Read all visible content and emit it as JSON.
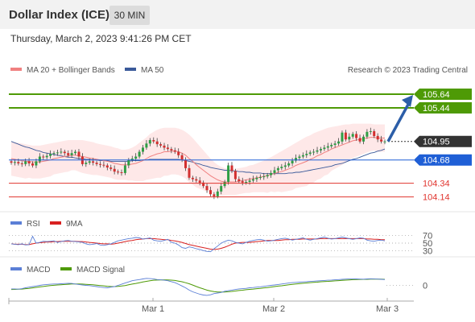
{
  "header": {
    "title": "Dollar Index (ICE)",
    "timeframe": "30 MIN",
    "timestamp": "Thursday, March 2, 2023 9:41:26 PM CET"
  },
  "legend": {
    "ma20": "MA 20 + Bollinger Bands",
    "ma50": "MA 50",
    "copyright": "Research © 2023 Trading Central",
    "rsi": "RSI",
    "rsi_ma": "9MA",
    "macd": "MACD",
    "macd_signal": "MACD Signal"
  },
  "colors": {
    "green_level": "#4e9a06",
    "blue_level": "#1f5fd6",
    "red_level": "#e0342e",
    "last_price": "#333333",
    "arrow": "#2c5ea8",
    "ma20": "#f08080",
    "ma50": "#3a5a9a",
    "band": "#fde0e0",
    "rsi": "#5b7fd6",
    "rsi_ma": "#d82020",
    "macd": "#5b7fd6",
    "macd_signal": "#4e9a06"
  },
  "chart_data": [
    {
      "type": "candlestick",
      "name": "price",
      "ylim": [
        103.96,
        105.84
      ],
      "x_ticks": [
        "Mar 1",
        "Mar 2",
        "Mar 3"
      ],
      "levels": [
        {
          "label": "105.64",
          "value": 105.64,
          "kind": "resistance"
        },
        {
          "label": "105.44",
          "value": 105.44,
          "kind": "resistance"
        },
        {
          "label": "104.95",
          "value": 104.95,
          "kind": "last"
        },
        {
          "label": "104.68",
          "value": 104.68,
          "kind": "pivot"
        },
        {
          "label": "104.34",
          "value": 104.34,
          "kind": "support"
        },
        {
          "label": "104.14",
          "value": 104.14,
          "kind": "support"
        }
      ],
      "close": [
        104.64,
        104.65,
        104.63,
        104.62,
        104.66,
        104.63,
        104.6,
        104.66,
        104.73,
        104.72,
        104.74,
        104.77,
        104.78,
        104.79,
        104.8,
        104.78,
        104.75,
        104.78,
        104.8,
        104.73,
        104.62,
        104.64,
        104.66,
        104.64,
        104.62,
        104.61,
        104.6,
        104.57,
        104.55,
        104.51,
        104.5,
        104.49,
        104.6,
        104.68,
        104.7,
        104.73,
        104.8,
        104.86,
        104.92,
        104.97,
        104.95,
        104.91,
        104.89,
        104.86,
        104.84,
        104.82,
        104.8,
        104.75,
        104.68,
        104.56,
        104.42,
        104.4,
        104.38,
        104.35,
        104.3,
        104.24,
        104.18,
        104.15,
        104.22,
        104.3,
        104.36,
        104.6,
        104.52,
        104.4,
        104.37,
        104.35,
        104.36,
        104.38,
        104.4,
        104.42,
        104.43,
        104.44,
        104.46,
        104.49,
        104.53,
        104.56,
        104.58,
        104.6,
        104.63,
        104.67,
        104.71,
        104.73,
        104.75,
        104.77,
        104.79,
        104.8,
        104.82,
        104.84,
        104.86,
        104.88,
        104.9,
        104.92,
        104.95,
        105.08,
        104.98,
        105.02,
        105.06,
        105.0,
        104.95,
        105.02,
        105.09,
        105.1,
        105.03,
        104.98,
        104.95,
        104.95
      ],
      "ma20": [
        104.7,
        104.69,
        104.68,
        104.67,
        104.66,
        104.66,
        104.65,
        104.65,
        104.65,
        104.66,
        104.67,
        104.68,
        104.7,
        104.71,
        104.72,
        104.73,
        104.74,
        104.75,
        104.75,
        104.74,
        104.73,
        104.72,
        104.71,
        104.7,
        104.69,
        104.68,
        104.67,
        104.66,
        104.65,
        104.63,
        104.62,
        104.61,
        104.61,
        104.61,
        104.62,
        104.63,
        104.65,
        104.67,
        104.7,
        104.73,
        104.75,
        104.77,
        104.78,
        104.8,
        104.8,
        104.81,
        104.81,
        104.8,
        104.78,
        104.75,
        104.7,
        104.66,
        104.61,
        104.57,
        104.53,
        104.49,
        104.45,
        104.42,
        104.39,
        104.37,
        104.36,
        104.36,
        104.36,
        104.36,
        104.37,
        104.38,
        104.39,
        104.4,
        104.41,
        104.42,
        104.43,
        104.44,
        104.45,
        104.47,
        104.48,
        104.5,
        104.51,
        104.53,
        104.55,
        104.57,
        104.6,
        104.62,
        104.64,
        104.66,
        104.69,
        104.71,
        104.74,
        104.76,
        104.79,
        104.81,
        104.84,
        104.86,
        104.88,
        104.9,
        104.92,
        104.94,
        104.96,
        104.97,
        104.98,
        104.99,
        105.0,
        105.01,
        105.01,
        105.0,
        105.0,
        105.0
      ],
      "ma50": [
        104.95,
        104.93,
        104.91,
        104.89,
        104.87,
        104.86,
        104.84,
        104.82,
        104.81,
        104.79,
        104.78,
        104.77,
        104.76,
        104.75,
        104.74,
        104.73,
        104.72,
        104.72,
        104.71,
        104.7,
        104.7,
        104.69,
        104.69,
        104.68,
        104.68,
        104.67,
        104.67,
        104.67,
        104.66,
        104.66,
        104.66,
        104.66,
        104.66,
        104.66,
        104.67,
        104.67,
        104.67,
        104.68,
        104.68,
        104.69,
        104.69,
        104.69,
        104.69,
        104.69,
        104.69,
        104.69,
        104.69,
        104.69,
        104.68,
        104.67,
        104.66,
        104.65,
        104.63,
        104.62,
        104.6,
        104.59,
        104.57,
        104.56,
        104.55,
        104.54,
        104.53,
        104.53,
        104.52,
        104.52,
        104.51,
        104.51,
        104.5,
        104.5,
        104.49,
        104.49,
        104.49,
        104.48,
        104.48,
        104.48,
        104.48,
        104.48,
        104.48,
        104.48,
        104.49,
        104.49,
        104.5,
        104.5,
        104.51,
        104.52,
        104.53,
        104.54,
        104.55,
        104.56,
        104.57,
        104.58,
        104.59,
        104.61,
        104.62,
        104.63,
        104.65,
        104.67,
        104.69,
        104.7,
        104.72,
        104.74,
        104.76,
        104.78,
        104.79,
        104.81,
        104.82,
        104.84
      ],
      "band_upper": [
        104.95,
        104.94,
        104.93,
        104.92,
        104.91,
        104.9,
        104.89,
        104.89,
        104.89,
        104.9,
        104.91,
        104.92,
        104.93,
        104.94,
        104.95,
        104.96,
        104.97,
        104.97,
        104.97,
        104.97,
        104.97,
        104.96,
        104.95,
        104.94,
        104.92,
        104.91,
        104.9,
        104.89,
        104.88,
        104.86,
        104.85,
        104.83,
        104.83,
        104.84,
        104.86,
        104.89,
        104.93,
        104.97,
        105.01,
        105.06,
        105.09,
        105.12,
        105.14,
        105.15,
        105.15,
        105.15,
        105.15,
        105.14,
        105.12,
        105.09,
        105.05,
        105.0,
        104.94,
        104.88,
        104.82,
        104.76,
        104.7,
        104.65,
        104.61,
        104.58,
        104.56,
        104.55,
        104.55,
        104.55,
        104.56,
        104.57,
        104.58,
        104.6,
        104.61,
        104.63,
        104.65,
        104.67,
        104.7,
        104.72,
        104.75,
        104.78,
        104.81,
        104.84,
        104.87,
        104.9,
        104.93,
        104.96,
        104.99,
        105.02,
        105.04,
        105.07,
        105.09,
        105.11,
        105.13,
        105.15,
        105.16,
        105.17,
        105.18,
        105.19,
        105.2,
        105.2,
        105.21,
        105.21,
        105.21,
        105.21,
        105.21,
        105.21,
        105.2,
        105.2,
        105.2,
        105.2
      ],
      "band_lower": [
        104.45,
        104.44,
        104.43,
        104.42,
        104.41,
        104.42,
        104.41,
        104.41,
        104.41,
        104.42,
        104.43,
        104.44,
        104.47,
        104.48,
        104.49,
        104.5,
        104.51,
        104.53,
        104.53,
        104.51,
        104.49,
        104.48,
        104.47,
        104.46,
        104.46,
        104.45,
        104.44,
        104.43,
        104.42,
        104.4,
        104.39,
        104.39,
        104.39,
        104.38,
        104.38,
        104.37,
        104.37,
        104.37,
        104.39,
        104.4,
        104.41,
        104.42,
        104.42,
        104.45,
        104.45,
        104.47,
        104.47,
        104.46,
        104.44,
        104.41,
        104.35,
        104.32,
        104.28,
        104.26,
        104.24,
        104.22,
        104.2,
        104.19,
        104.17,
        104.16,
        104.16,
        104.17,
        104.17,
        104.17,
        104.18,
        104.19,
        104.2,
        104.2,
        104.21,
        104.21,
        104.21,
        104.21,
        104.2,
        104.22,
        104.21,
        104.22,
        104.21,
        104.22,
        104.23,
        104.24,
        104.27,
        104.28,
        104.29,
        104.3,
        104.34,
        104.35,
        104.39,
        104.41,
        104.45,
        104.47,
        104.52,
        104.55,
        104.58,
        104.61,
        104.64,
        104.68,
        104.71,
        104.73,
        104.75,
        104.77,
        104.79,
        104.81,
        104.82,
        104.8,
        104.8,
        104.8
      ]
    },
    {
      "type": "line",
      "name": "RSI",
      "y_ticks": [
        "70",
        "50",
        "30"
      ],
      "ylim": [
        20,
        80
      ],
      "series": [
        {
          "name": "RSI",
          "values": [
            48,
            47,
            46,
            48,
            45,
            46,
            68,
            50,
            52,
            55,
            54,
            55,
            56,
            52,
            54,
            56,
            57,
            55,
            54,
            53,
            52,
            48,
            46,
            47,
            49,
            45,
            44,
            46,
            48,
            52,
            56,
            58,
            60,
            62,
            63,
            65,
            64,
            61,
            62,
            64,
            58,
            56,
            55,
            57,
            60,
            52,
            50,
            45,
            38,
            36,
            40,
            38,
            35,
            33,
            30,
            28,
            27,
            35,
            42,
            50,
            54,
            58,
            56,
            52,
            50,
            48,
            52,
            55,
            57,
            59,
            60,
            58,
            55,
            56,
            58,
            60,
            62,
            63,
            61,
            58,
            60,
            62,
            64,
            60,
            58,
            60,
            62,
            64,
            66,
            63,
            61,
            62,
            64,
            66,
            64,
            62,
            60,
            62,
            64,
            63,
            58,
            56,
            55,
            57,
            58,
            56
          ]
        },
        {
          "name": "9MA",
          "values": [
            48,
            47,
            47,
            47,
            46,
            46,
            48,
            50,
            51,
            52,
            53,
            53,
            54,
            54,
            55,
            55,
            55,
            55,
            55,
            54,
            54,
            53,
            52,
            51,
            50,
            49,
            48,
            48,
            47,
            48,
            50,
            52,
            54,
            56,
            57,
            59,
            60,
            61,
            62,
            62,
            62,
            61,
            60,
            59,
            59,
            57,
            56,
            54,
            52,
            49,
            46,
            44,
            42,
            40,
            38,
            36,
            34,
            33,
            34,
            36,
            39,
            43,
            47,
            50,
            51,
            52,
            52,
            52,
            53,
            54,
            55,
            56,
            57,
            57,
            57,
            57,
            58,
            59,
            59,
            60,
            60,
            60,
            61,
            61,
            61,
            61,
            61,
            62,
            62,
            62,
            62,
            62,
            62,
            62,
            62,
            62,
            62,
            62,
            62,
            62,
            61,
            61,
            60,
            60,
            59,
            59
          ]
        }
      ]
    },
    {
      "type": "line",
      "name": "MACD",
      "y_ticks": [
        "0"
      ],
      "ylim": [
        -0.12,
        0.1
      ],
      "series": [
        {
          "name": "MACD",
          "values": [
            -0.03,
            -0.03,
            -0.032,
            -0.028,
            -0.02,
            -0.015,
            -0.01,
            -0.005,
            0.0,
            0.005,
            0.008,
            0.01,
            0.012,
            0.012,
            0.014,
            0.016,
            0.018,
            0.017,
            0.012,
            0.008,
            0.004,
            0.0,
            -0.002,
            -0.006,
            -0.01,
            -0.015,
            -0.018,
            -0.02,
            -0.015,
            -0.01,
            0.0,
            0.01,
            0.02,
            0.03,
            0.04,
            0.046,
            0.05,
            0.055,
            0.06,
            0.058,
            0.056,
            0.05,
            0.048,
            0.044,
            0.04,
            0.032,
            0.024,
            0.01,
            -0.005,
            -0.02,
            -0.04,
            -0.055,
            -0.065,
            -0.075,
            -0.082,
            -0.085,
            -0.08,
            -0.07,
            -0.065,
            -0.06,
            -0.05,
            -0.045,
            -0.04,
            -0.035,
            -0.03,
            -0.028,
            -0.025,
            -0.02,
            -0.018,
            -0.015,
            -0.012,
            -0.008,
            -0.004,
            0.0,
            0.004,
            0.008,
            0.012,
            0.016,
            0.02,
            0.024,
            0.026,
            0.028,
            0.03,
            0.032,
            0.034,
            0.036,
            0.038,
            0.04,
            0.042,
            0.044,
            0.046,
            0.048,
            0.05,
            0.052,
            0.054,
            0.056,
            0.056,
            0.055,
            0.054,
            0.053,
            0.055,
            0.057,
            0.056,
            0.054,
            0.052,
            0.05
          ]
        },
        {
          "name": "MACD Signal",
          "values": [
            -0.035,
            -0.034,
            -0.033,
            -0.031,
            -0.028,
            -0.025,
            -0.021,
            -0.017,
            -0.013,
            -0.009,
            -0.005,
            -0.002,
            0.001,
            0.004,
            0.006,
            0.008,
            0.01,
            0.012,
            0.012,
            0.012,
            0.011,
            0.009,
            0.007,
            0.005,
            0.002,
            -0.001,
            -0.004,
            -0.007,
            -0.009,
            -0.01,
            -0.008,
            -0.005,
            -0.001,
            0.005,
            0.011,
            0.017,
            0.023,
            0.029,
            0.035,
            0.04,
            0.044,
            0.046,
            0.047,
            0.048,
            0.047,
            0.045,
            0.042,
            0.037,
            0.031,
            0.023,
            0.014,
            0.003,
            -0.009,
            -0.02,
            -0.03,
            -0.04,
            -0.048,
            -0.053,
            -0.056,
            -0.057,
            -0.056,
            -0.054,
            -0.051,
            -0.048,
            -0.044,
            -0.041,
            -0.037,
            -0.034,
            -0.031,
            -0.028,
            -0.025,
            -0.021,
            -0.018,
            -0.014,
            -0.01,
            -0.006,
            -0.003,
            0.001,
            0.005,
            0.009,
            0.012,
            0.015,
            0.018,
            0.021,
            0.024,
            0.026,
            0.028,
            0.031,
            0.033,
            0.035,
            0.037,
            0.039,
            0.041,
            0.043,
            0.045,
            0.047,
            0.049,
            0.05,
            0.051,
            0.052,
            0.052,
            0.053,
            0.053,
            0.053,
            0.053,
            0.052
          ]
        }
      ]
    }
  ]
}
